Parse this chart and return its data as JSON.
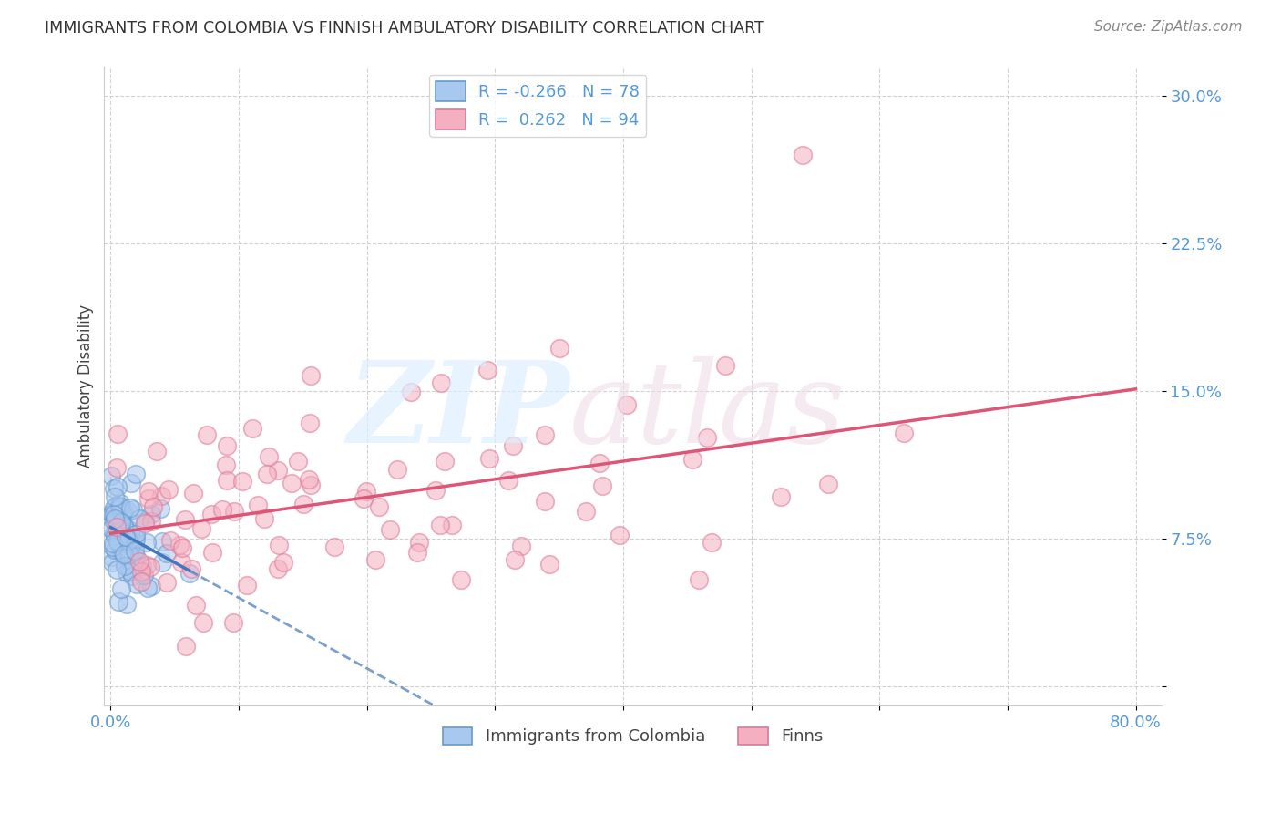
{
  "title": "IMMIGRANTS FROM COLOMBIA VS FINNISH AMBULATORY DISABILITY CORRELATION CHART",
  "source": "Source: ZipAtlas.com",
  "ylabel": "Ambulatory Disability",
  "color_colombia_fill": "#a8c8f0",
  "color_colombia_edge": "#6699cc",
  "color_colombia_line": "#4477bb",
  "color_finns_fill": "#f4b0c0",
  "color_finns_edge": "#dd7799",
  "color_finns_line": "#dd5577",
  "color_tick": "#5599dd",
  "color_grid": "#cccccc",
  "background_color": "#ffffff",
  "watermark_zip_color": "#dde8f5",
  "watermark_atlas_color": "#e8d5e0",
  "legend_label1": "R = -0.266   N = 78",
  "legend_label2": "R =  0.262   N = 94",
  "bottom_label1": "Immigrants from Colombia",
  "bottom_label2": "Finns"
}
